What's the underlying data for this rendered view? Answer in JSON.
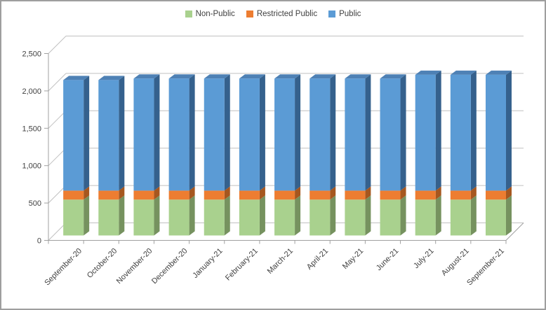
{
  "window": {
    "background": "#FFFFFF",
    "border_color": "#9E9E9E"
  },
  "legend": {
    "position": "top",
    "items": [
      {
        "label": "Non-Public",
        "color": "#A9D18E"
      },
      {
        "label": "Restricted Public",
        "color": "#ED7D31"
      },
      {
        "label": "Public",
        "color": "#5B9BD5"
      }
    ]
  },
  "chart_data": {
    "type": "bar",
    "stacked": true,
    "style": "3d-column",
    "title": "",
    "xlabel": "",
    "ylabel": "",
    "grid": true,
    "legend_position": "top",
    "ylim": [
      0,
      2500
    ],
    "ytick_step": 500,
    "ytick_labels": [
      "0",
      "500",
      "1,000",
      "1,500",
      "2,000",
      "2,500"
    ],
    "categories": [
      "September-20",
      "October-20",
      "November-20",
      "December-20",
      "January-21",
      "February-21",
      "March-21",
      "April-21",
      "May-21",
      "June-21",
      "July-21",
      "August-21",
      "September-21"
    ],
    "series": [
      {
        "name": "Non-Public",
        "color": "#A9D18E",
        "side_color": "#76925F",
        "top_color": "#8FB478",
        "values": [
          480,
          480,
          480,
          480,
          480,
          480,
          480,
          480,
          480,
          480,
          480,
          480,
          480
        ]
      },
      {
        "name": "Restricted Public",
        "color": "#ED7D31",
        "side_color": "#A6571F",
        "top_color": "#C66827",
        "values": [
          120,
          120,
          120,
          120,
          120,
          120,
          120,
          120,
          120,
          120,
          120,
          120,
          120
        ]
      },
      {
        "name": "Public",
        "color": "#5B9BD5",
        "side_color": "#35618D",
        "top_color": "#4E81B5",
        "values": [
          1480,
          1480,
          1500,
          1500,
          1500,
          1500,
          1500,
          1500,
          1500,
          1500,
          1550,
          1550,
          1550
        ]
      }
    ],
    "totals": [
      2080,
      2080,
      2100,
      2100,
      2100,
      2100,
      2100,
      2100,
      2100,
      2100,
      2150,
      2150,
      2150
    ]
  },
  "axis_style": {
    "text_color": "#404040",
    "grid_color": "#C0C0C0",
    "frame_color": "#A0A0A0"
  }
}
